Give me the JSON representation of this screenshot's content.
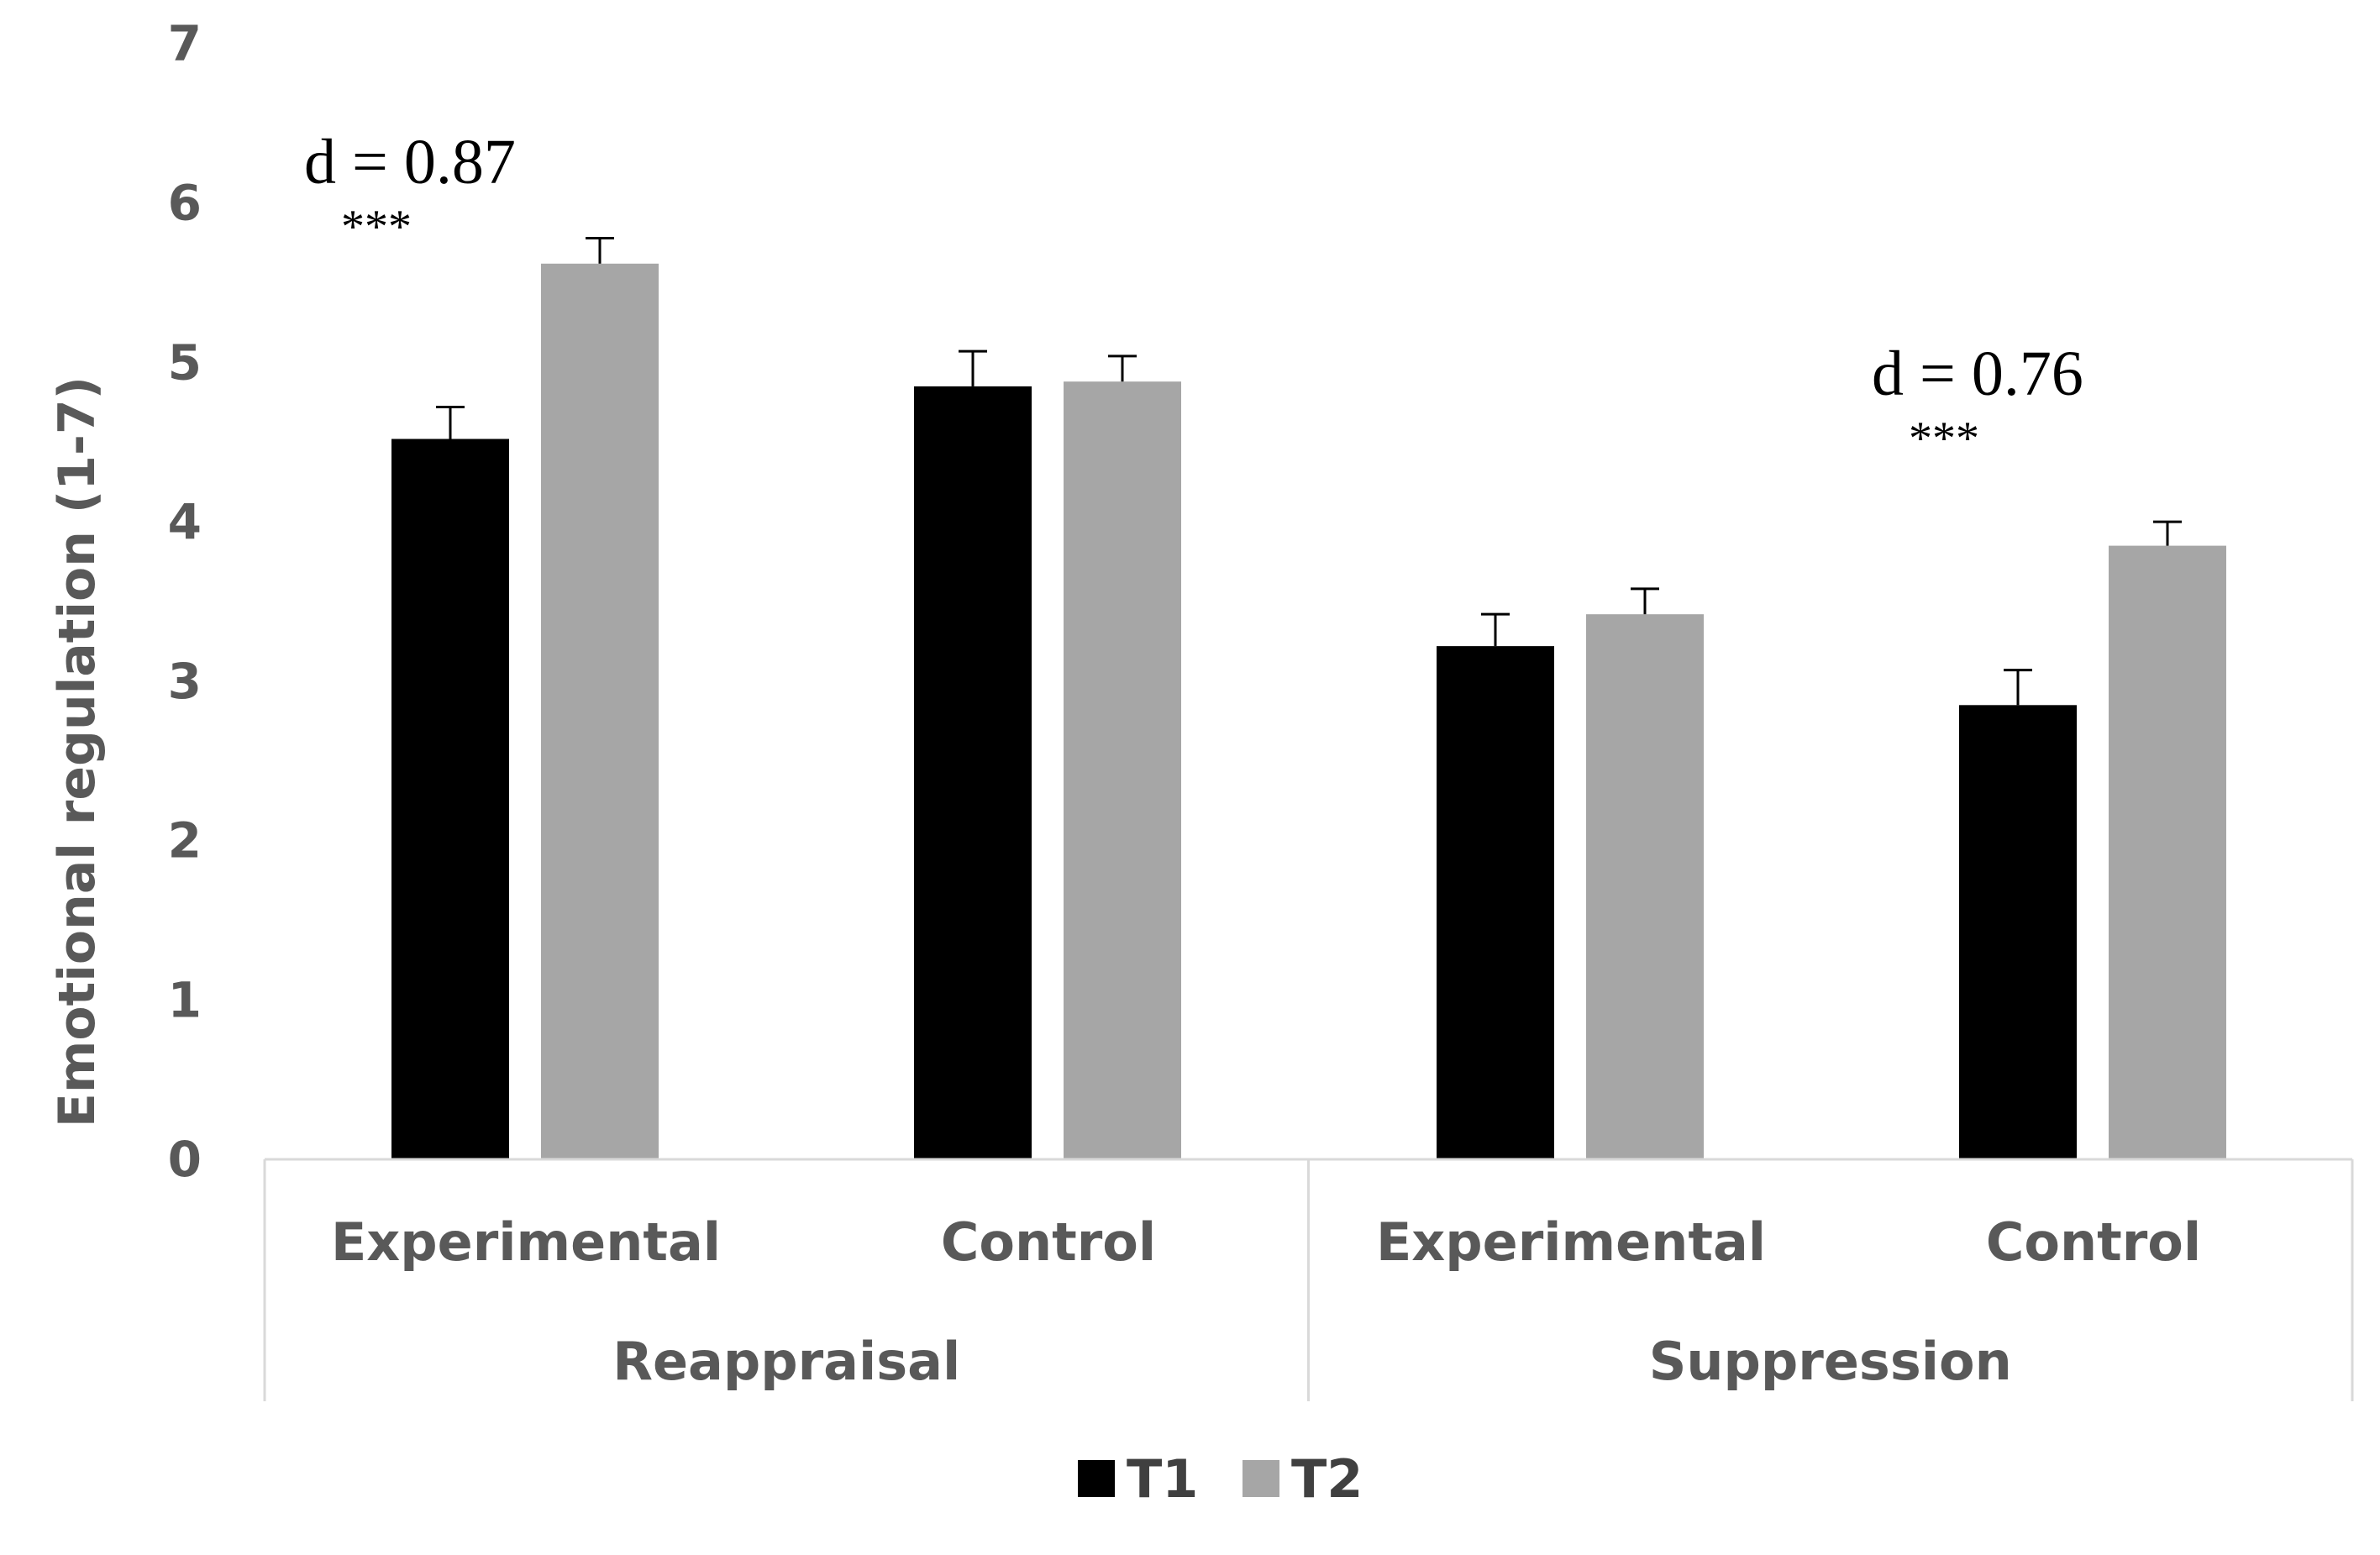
{
  "chart_data": {
    "type": "bar",
    "title": "",
    "xlabel": "",
    "ylabel": "Emotional regulation (1-7)",
    "ylim": [
      0,
      7
    ],
    "yticks": [
      "0",
      "1",
      "2",
      "3",
      "4",
      "5",
      "6",
      "7"
    ],
    "groups": [
      {
        "label": "Reappraisal",
        "categories": [
          "Experimental",
          "Control"
        ]
      },
      {
        "label": "Suppression",
        "categories": [
          "Experimental",
          "Control"
        ]
      }
    ],
    "series": [
      {
        "name": "T1",
        "color": "#000000",
        "values": [
          4.52,
          4.85,
          3.22,
          2.85
        ],
        "errors": [
          0.2,
          0.22,
          0.2,
          0.22
        ]
      },
      {
        "name": "T2",
        "color": "#a6a6a6",
        "values": [
          5.62,
          4.88,
          3.42,
          3.85
        ],
        "errors": [
          0.16,
          0.16,
          0.16,
          0.15
        ]
      }
    ],
    "annotations": [
      {
        "category_index": 0,
        "text": "d = 0.87",
        "significance": "***"
      },
      {
        "category_index": 3,
        "text": "d = 0.76",
        "significance": "***"
      }
    ]
  }
}
